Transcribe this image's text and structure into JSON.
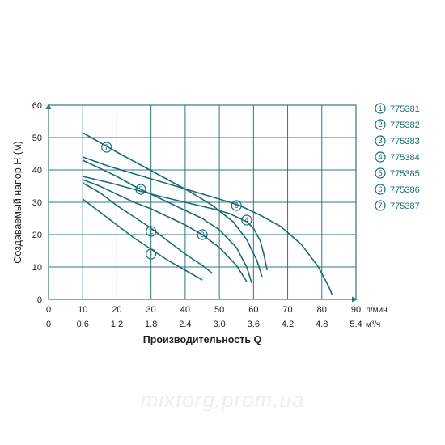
{
  "watermark": "mixtorg.prom.ua",
  "chart": {
    "type": "line",
    "stroke_color": "#1b6b77",
    "background_color": "#ffffff",
    "grid_color": "#2e7781",
    "y_axis": {
      "label": "Создаваемый напор H (м)",
      "min": 0,
      "max": 60,
      "ticks": [
        0,
        10,
        20,
        30,
        40,
        50,
        60
      ]
    },
    "x_axis_top": {
      "unit": "л/мин",
      "min": 0,
      "max": 90,
      "ticks": [
        0,
        10,
        20,
        30,
        40,
        50,
        60,
        70,
        80,
        90
      ]
    },
    "x_axis_bottom": {
      "label": "Производительность Q",
      "unit": "м³/ч",
      "min": 0,
      "max": 5.4,
      "ticks": [
        0,
        0.6,
        1.2,
        1.8,
        2.4,
        3.0,
        3.6,
        4.2,
        4.8,
        5.4
      ]
    },
    "legend": {
      "items": [
        {
          "num": "1",
          "label": "775381"
        },
        {
          "num": "2",
          "label": "775382"
        },
        {
          "num": "3",
          "label": "775383"
        },
        {
          "num": "4",
          "label": "775384"
        },
        {
          "num": "5",
          "label": "775385"
        },
        {
          "num": "6",
          "label": "775386"
        },
        {
          "num": "7",
          "label": "775387"
        }
      ]
    },
    "curves": [
      {
        "id": "1",
        "marker_at": [
          30,
          14
        ],
        "points": [
          [
            10,
            31
          ],
          [
            15,
            27
          ],
          [
            20,
            23
          ],
          [
            25,
            19
          ],
          [
            30,
            15.5
          ],
          [
            35,
            12
          ],
          [
            40,
            9
          ],
          [
            45,
            6
          ]
        ]
      },
      {
        "id": "2",
        "marker_at": [
          30,
          21
        ],
        "points": [
          [
            10,
            36
          ],
          [
            15,
            33
          ],
          [
            20,
            29
          ],
          [
            25,
            25.5
          ],
          [
            30,
            22
          ],
          [
            35,
            18
          ],
          [
            40,
            14
          ],
          [
            45,
            10.5
          ],
          [
            48,
            8
          ]
        ]
      },
      {
        "id": "3",
        "marker_at": [
          45,
          20
        ],
        "points": [
          [
            10,
            37
          ],
          [
            15,
            35
          ],
          [
            20,
            32.5
          ],
          [
            25,
            30
          ],
          [
            30,
            28
          ],
          [
            35,
            25.5
          ],
          [
            40,
            23
          ],
          [
            45,
            20
          ],
          [
            50,
            16
          ],
          [
            55,
            10.5
          ],
          [
            58,
            5.5
          ]
        ]
      },
      {
        "id": "4",
        "marker_at": [
          58,
          24.5
        ],
        "points": [
          [
            10,
            38
          ],
          [
            18,
            36
          ],
          [
            25,
            34
          ],
          [
            32,
            32
          ],
          [
            40,
            30
          ],
          [
            48,
            28
          ],
          [
            53,
            26.5
          ],
          [
            58,
            24
          ],
          [
            60,
            22
          ],
          [
            62,
            18
          ],
          [
            63,
            14
          ],
          [
            64,
            9
          ]
        ]
      },
      {
        "id": "5",
        "marker_at": [
          27,
          34
        ],
        "points": [
          [
            10,
            43
          ],
          [
            15,
            40.5
          ],
          [
            20,
            38
          ],
          [
            25,
            35
          ],
          [
            30,
            32.5
          ],
          [
            35,
            30
          ],
          [
            40,
            27.5
          ],
          [
            45,
            25
          ],
          [
            50,
            21.5
          ],
          [
            55,
            16
          ],
          [
            58,
            10
          ],
          [
            59.5,
            5
          ]
        ]
      },
      {
        "id": "6",
        "marker_at": [
          55,
          29
        ],
        "points": [
          [
            10,
            44
          ],
          [
            18,
            41
          ],
          [
            26,
            38.5
          ],
          [
            34,
            36
          ],
          [
            42,
            33.5
          ],
          [
            50,
            31
          ],
          [
            56,
            29
          ],
          [
            62,
            26
          ],
          [
            68,
            22.5
          ],
          [
            74,
            17
          ],
          [
            79,
            10
          ],
          [
            82,
            4
          ],
          [
            83,
            1.5
          ]
        ]
      },
      {
        "id": "7",
        "marker_at": [
          17,
          47
        ],
        "points": [
          [
            10,
            51.5
          ],
          [
            15,
            48.5
          ],
          [
            20,
            45.5
          ],
          [
            27,
            41.5
          ],
          [
            34,
            37.5
          ],
          [
            41,
            33.5
          ],
          [
            48,
            29
          ],
          [
            54,
            24
          ],
          [
            58,
            18.5
          ],
          [
            61,
            12
          ],
          [
            62.5,
            7
          ]
        ]
      }
    ],
    "arrow_size": 3.5,
    "marker_radius": 6
  }
}
